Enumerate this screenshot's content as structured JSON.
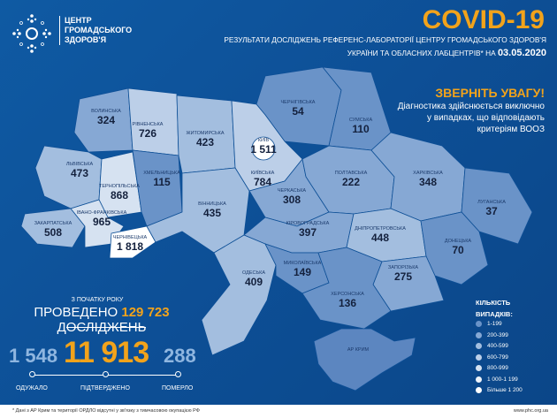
{
  "header": {
    "logo_lines": [
      "ЦЕНТР",
      "ГРОМАДСЬКОГО",
      "ЗДОРОВ'Я"
    ],
    "title": "COVID-19",
    "subtitle_line1": "РЕЗУЛЬТАТИ ДОСЛІДЖЕНЬ РЕФЕРЕНС-ЛАБОРАТОРІЇ ЦЕНТРУ ГРОМАДСЬКОГО ЗДОРОВ'Я",
    "subtitle_line2": "УКРАЇНИ ТА ОБЛАСНИХ ЛАБЦЕНТРІВ* НА",
    "date": "03.05.2020"
  },
  "notice": {
    "title": "ЗВЕРНІТЬ УВАГУ!",
    "body": "Діагностика здійснюється виключно у випадках, що відповідають критеріям ВООЗ"
  },
  "regions": [
    {
      "name": "ВОЛИНСЬКА",
      "value": "324",
      "cases": 324
    },
    {
      "name": "РІВНЕНСЬКА",
      "value": "726",
      "cases": 726
    },
    {
      "name": "ЖИТОМИРСЬКА",
      "value": "423",
      "cases": 423
    },
    {
      "name": "ЧЕРНІГІВСЬКА",
      "value": "54",
      "cases": 54
    },
    {
      "name": "СУМСЬКА",
      "value": "110",
      "cases": 110
    },
    {
      "name": "КИЇВСЬКА",
      "value": "784",
      "cases": 784
    },
    {
      "name": "КИЇВ",
      "value": "1 511",
      "cases": 1511
    },
    {
      "name": "ЛЬВІВСЬКА",
      "value": "473",
      "cases": 473
    },
    {
      "name": "ТЕРНОПІЛЬСЬКА",
      "value": "868",
      "cases": 868
    },
    {
      "name": "ХМЕЛЬНИЦЬКА",
      "value": "115",
      "cases": 115
    },
    {
      "name": "ЗАКАРПАТСЬКА",
      "value": "508",
      "cases": 508
    },
    {
      "name": "ІВАНО-ФРАНКІВСЬКА",
      "value": "965",
      "cases": 965
    },
    {
      "name": "ЧЕРНІВЕЦЬКА",
      "value": "1 818",
      "cases": 1818
    },
    {
      "name": "ВІННИЦЬКА",
      "value": "435",
      "cases": 435
    },
    {
      "name": "ЧЕРКАСЬКА",
      "value": "308",
      "cases": 308
    },
    {
      "name": "ПОЛТАВСЬКА",
      "value": "222",
      "cases": 222
    },
    {
      "name": "ХАРКІВСЬКА",
      "value": "348",
      "cases": 348
    },
    {
      "name": "ЛУГАНСЬКА",
      "value": "37",
      "cases": 37
    },
    {
      "name": "КІРОВОГРАДСЬКА",
      "value": "397",
      "cases": 397
    },
    {
      "name": "ДНІПРОПЕТРОВСЬКА",
      "value": "448",
      "cases": 448
    },
    {
      "name": "ДОНЕЦЬКА",
      "value": "70",
      "cases": 70
    },
    {
      "name": "ОДЕСЬКА",
      "value": "409",
      "cases": 409
    },
    {
      "name": "МИКОЛАЇВСЬКА",
      "value": "149",
      "cases": 149
    },
    {
      "name": "ЗАПОРІЗЬКА",
      "value": "275",
      "cases": 275
    },
    {
      "name": "ХЕРСОНСЬКА",
      "value": "136",
      "cases": 136
    },
    {
      "name": "АР КРИМ",
      "value": "",
      "cases": null
    }
  ],
  "stats": {
    "since_label": "З ПОЧАТКУ РОКУ",
    "tests_prefix": "ПРОВЕДЕНО",
    "tests_value": "129 723",
    "tests_suffix": "ДОСЛІДЖЕНЬ",
    "recovered": "1 548",
    "recovered_label": "ОДУЖАЛО",
    "confirmed": "11 913",
    "confirmed_label": "ПІДТВЕРДЖЕНО",
    "deaths": "288",
    "deaths_label": "ПОМЕРЛО"
  },
  "legend": {
    "title": "КІЛЬКІСТЬ ВИПАДКІВ:",
    "items": [
      {
        "label": "1-199",
        "color": "#6a93c8"
      },
      {
        "label": "200-399",
        "color": "#86a8d4"
      },
      {
        "label": "400-599",
        "color": "#a3bedf"
      },
      {
        "label": "600-799",
        "color": "#bccfe8"
      },
      {
        "label": "800-999",
        "color": "#d6e2f1"
      },
      {
        "label": "1 000-1 199",
        "color": "#eef3fa"
      },
      {
        "label": "Більше 1 200",
        "color": "#ffffff"
      }
    ]
  },
  "footer": {
    "note": "* Дані з АР Крим та території ОРДЛО відсутні у зв'язку з тимчасовою окупацією РФ",
    "site": "www.phc.org.ua"
  },
  "colors": {
    "accent": "#f2a31b",
    "background": "#0d4f96",
    "crimea": "#5c86c0"
  }
}
